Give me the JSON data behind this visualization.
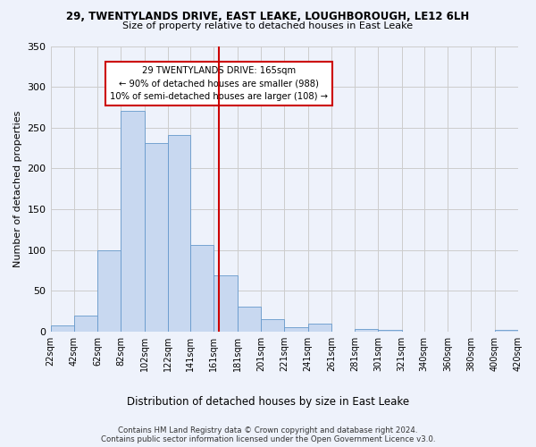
{
  "title_line1": "29, TWENTYLANDS DRIVE, EAST LEAKE, LOUGHBOROUGH, LE12 6LH",
  "title_line2": "Size of property relative to detached houses in East Leake",
  "xlabel": "Distribution of detached houses by size in East Leake",
  "ylabel": "Number of detached properties",
  "bar_color": "#c8d8f0",
  "bar_edge_color": "#6699cc",
  "bin_labels": [
    "22sqm",
    "42sqm",
    "62sqm",
    "82sqm",
    "102sqm",
    "122sqm",
    "141sqm",
    "161sqm",
    "181sqm",
    "201sqm",
    "221sqm",
    "241sqm",
    "261sqm",
    "281sqm",
    "301sqm",
    "321sqm",
    "340sqm",
    "360sqm",
    "380sqm",
    "400sqm",
    "420sqm"
  ],
  "bar_heights": [
    7,
    20,
    100,
    270,
    231,
    241,
    106,
    69,
    30,
    15,
    5,
    10,
    0,
    3,
    2,
    0,
    0,
    0,
    0,
    2
  ],
  "bin_edges": [
    22,
    42,
    62,
    82,
    102,
    122,
    141,
    161,
    181,
    201,
    221,
    241,
    261,
    281,
    301,
    321,
    340,
    360,
    380,
    400,
    420
  ],
  "vline_x": 165,
  "vline_color": "#cc0000",
  "annotation_title": "29 TWENTYLANDS DRIVE: 165sqm",
  "annotation_line1": "← 90% of detached houses are smaller (988)",
  "annotation_line2": "10% of semi-detached houses are larger (108) →",
  "annotation_box_color": "#ffffff",
  "annotation_box_edge": "#cc0000",
  "ylim": [
    0,
    350
  ],
  "yticks": [
    0,
    50,
    100,
    150,
    200,
    250,
    300,
    350
  ],
  "grid_color": "#cccccc",
  "bg_color": "#eef2fb",
  "footer_line1": "Contains HM Land Registry data © Crown copyright and database right 2024.",
  "footer_line2": "Contains public sector information licensed under the Open Government Licence v3.0."
}
